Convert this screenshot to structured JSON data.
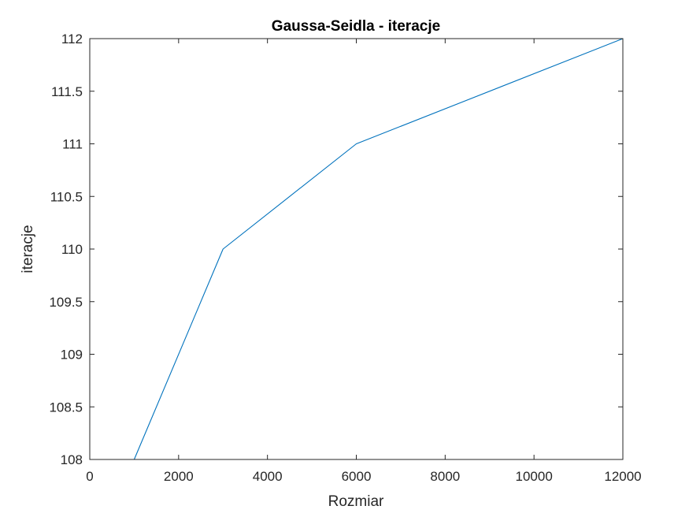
{
  "chart_data": {
    "type": "line",
    "title": "Gaussa-Seidla - iteracje",
    "xlabel": "Rozmiar",
    "ylabel": "iteracje",
    "xlim": [
      0,
      12000
    ],
    "ylim": [
      108,
      112
    ],
    "xticks": [
      0,
      2000,
      4000,
      6000,
      8000,
      10000,
      12000
    ],
    "yticks": [
      108,
      108.5,
      109,
      109.5,
      110,
      110.5,
      111,
      111.5,
      112
    ],
    "xtick_labels": [
      "0",
      "2000",
      "4000",
      "6000",
      "8000",
      "10000",
      "12000"
    ],
    "ytick_labels": [
      "108",
      "108.5",
      "109",
      "109.5",
      "110",
      "110.5",
      "111",
      "111.5",
      "112"
    ],
    "grid": false,
    "series": [
      {
        "color": "#0072BD",
        "x": [
          500,
          1000,
          3000,
          6000,
          12000
        ],
        "y": [
          108,
          108,
          110,
          111,
          112
        ]
      }
    ]
  }
}
